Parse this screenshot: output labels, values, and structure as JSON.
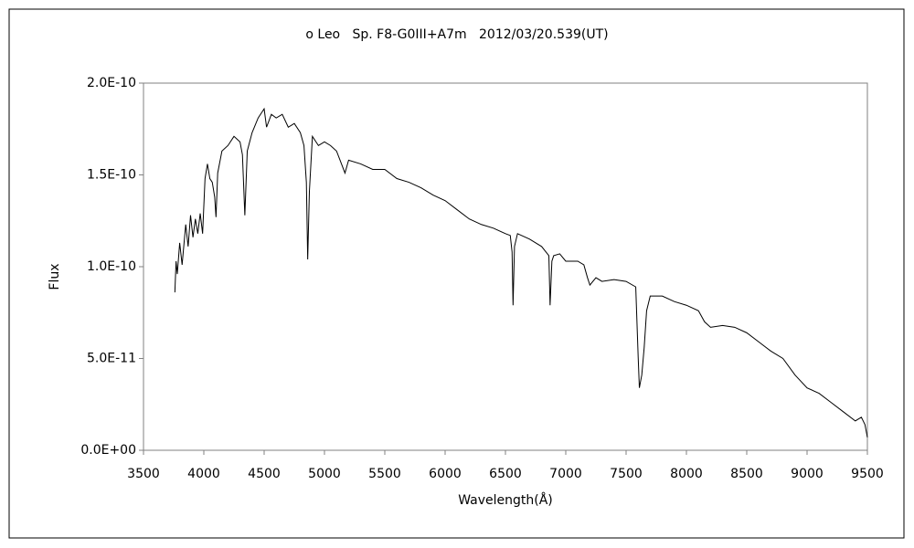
{
  "chart_data": {
    "type": "line",
    "title": "ο Leo   Sp. F8-G0III+A7m   2012/03/20.539(UT)",
    "x_label": "Wavelength(Å)",
    "y_label": "Flux",
    "x": [
      3760,
      3770,
      3780,
      3800,
      3820,
      3850,
      3870,
      3890,
      3910,
      3930,
      3950,
      3970,
      3990,
      4010,
      4030,
      4050,
      4070,
      4090,
      4101,
      4115,
      4150,
      4200,
      4250,
      4300,
      4320,
      4340,
      4360,
      4400,
      4450,
      4500,
      4520,
      4560,
      4600,
      4650,
      4700,
      4750,
      4800,
      4830,
      4850,
      4861,
      4875,
      4900,
      4950,
      5000,
      5050,
      5100,
      5170,
      5200,
      5300,
      5400,
      5500,
      5600,
      5700,
      5800,
      5900,
      6000,
      6100,
      6200,
      6300,
      6400,
      6500,
      6540,
      6555,
      6563,
      6575,
      6600,
      6700,
      6800,
      6860,
      6870,
      6885,
      6900,
      6950,
      7000,
      7100,
      7150,
      7180,
      7200,
      7250,
      7300,
      7400,
      7500,
      7580,
      7600,
      7610,
      7630,
      7650,
      7670,
      7700,
      7800,
      7900,
      8000,
      8100,
      8150,
      8200,
      8300,
      8400,
      8500,
      8600,
      8700,
      8800,
      8900,
      9000,
      9100,
      9200,
      9300,
      9400,
      9450,
      9480,
      9500
    ],
    "series": [
      {
        "name": "Flux",
        "color": "#000000",
        "values": [
          8.6e-11,
          1.03e-10,
          9.6e-11,
          1.13e-10,
          1.01e-10,
          1.23e-10,
          1.11e-10,
          1.28e-10,
          1.16e-10,
          1.26e-10,
          1.18e-10,
          1.29e-10,
          1.18e-10,
          1.48e-10,
          1.56e-10,
          1.48e-10,
          1.46e-10,
          1.38e-10,
          1.27e-10,
          1.51e-10,
          1.63e-10,
          1.66e-10,
          1.71e-10,
          1.68e-10,
          1.61e-10,
          1.28e-10,
          1.63e-10,
          1.73e-10,
          1.81e-10,
          1.86e-10,
          1.76e-10,
          1.83e-10,
          1.81e-10,
          1.83e-10,
          1.76e-10,
          1.78e-10,
          1.73e-10,
          1.66e-10,
          1.46e-10,
          1.04e-10,
          1.41e-10,
          1.71e-10,
          1.66e-10,
          1.68e-10,
          1.66e-10,
          1.63e-10,
          1.51e-10,
          1.58e-10,
          1.56e-10,
          1.53e-10,
          1.53e-10,
          1.48e-10,
          1.46e-10,
          1.43e-10,
          1.39e-10,
          1.36e-10,
          1.31e-10,
          1.26e-10,
          1.23e-10,
          1.21e-10,
          1.18e-10,
          1.17e-10,
          1.08e-10,
          7.9e-11,
          1.11e-10,
          1.18e-10,
          1.15e-10,
          1.11e-10,
          1.06e-10,
          7.9e-11,
          1.03e-10,
          1.06e-10,
          1.07e-10,
          1.03e-10,
          1.03e-10,
          1.01e-10,
          9.4e-11,
          9e-11,
          9.4e-11,
          9.2e-11,
          9.3e-11,
          9.2e-11,
          8.9e-11,
          5.1e-11,
          3.4e-11,
          4.1e-11,
          5.6e-11,
          7.6e-11,
          8.4e-11,
          8.4e-11,
          8.1e-11,
          7.9e-11,
          7.6e-11,
          7e-11,
          6.7e-11,
          6.8e-11,
          6.7e-11,
          6.4e-11,
          5.9e-11,
          5.4e-11,
          5e-11,
          4.1e-11,
          3.4e-11,
          3.1e-11,
          2.6e-11,
          2.1e-11,
          1.6e-11,
          1.8e-11,
          1.4e-11,
          7e-12
        ]
      }
    ],
    "xlim": [
      3500,
      9500
    ],
    "xticks": [
      3500,
      4000,
      4500,
      5000,
      5500,
      6000,
      6500,
      7000,
      7500,
      8000,
      8500,
      9000,
      9500
    ],
    "ylim": [
      0,
      2e-10
    ],
    "yticks": [
      {
        "value": 0,
        "label": "0.0E+00"
      },
      {
        "value": 5e-11,
        "label": "5.0E-11"
      },
      {
        "value": 1e-10,
        "label": "1.0E-10"
      },
      {
        "value": 1.5e-10,
        "label": "1.5E-10"
      },
      {
        "value": 2e-10,
        "label": "2.0E-10"
      }
    ],
    "grid": false
  }
}
